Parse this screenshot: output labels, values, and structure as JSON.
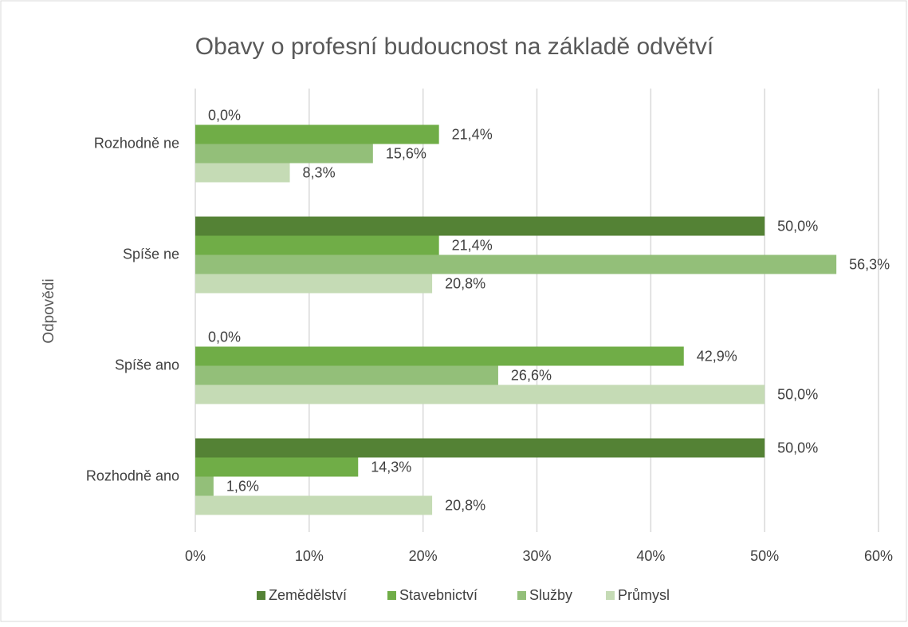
{
  "chart_data": {
    "type": "hbar",
    "title": "Obavy o profesní budoucnost na základě odvětví",
    "y_axis_label": "Odpovědi",
    "categories": [
      "Rozhodně ne",
      "Spíše ne",
      "Spíše ano",
      "Rozhodně ano"
    ],
    "series": [
      {
        "name": "Zemědělství",
        "color": "#548235",
        "values": [
          0,
          50,
          0,
          50
        ],
        "value_labels": [
          "0,0%",
          "50,0%",
          "0,0%",
          "50,0%"
        ]
      },
      {
        "name": "Stavebnictví",
        "color": "#70ad47",
        "values": [
          21.4,
          21.4,
          42.9,
          14.3
        ],
        "value_labels": [
          "21,4%",
          "21,4%",
          "42,9%",
          "14,3%"
        ]
      },
      {
        "name": "Služby",
        "color": "#93bf79",
        "values": [
          15.6,
          56.3,
          26.6,
          1.6
        ],
        "value_labels": [
          "15,6%",
          "56,3%",
          "26,6%",
          "1,6%"
        ]
      },
      {
        "name": "Průmysl",
        "color": "#c5dbb5",
        "values": [
          8.3,
          20.8,
          50,
          20.8
        ],
        "value_labels": [
          "8,3%",
          "20,8%",
          "50,0%",
          "20,8%"
        ]
      }
    ],
    "xlim": [
      0,
      60
    ],
    "xticks": [
      {
        "value": 0,
        "label": "0%"
      },
      {
        "value": 10,
        "label": "10%"
      },
      {
        "value": 20,
        "label": "20%"
      },
      {
        "value": 30,
        "label": "30%"
      },
      {
        "value": 40,
        "label": "40%"
      },
      {
        "value": 50,
        "label": "50%"
      },
      {
        "value": 60,
        "label": "60%"
      }
    ],
    "grid": true,
    "legend": "bottom"
  }
}
